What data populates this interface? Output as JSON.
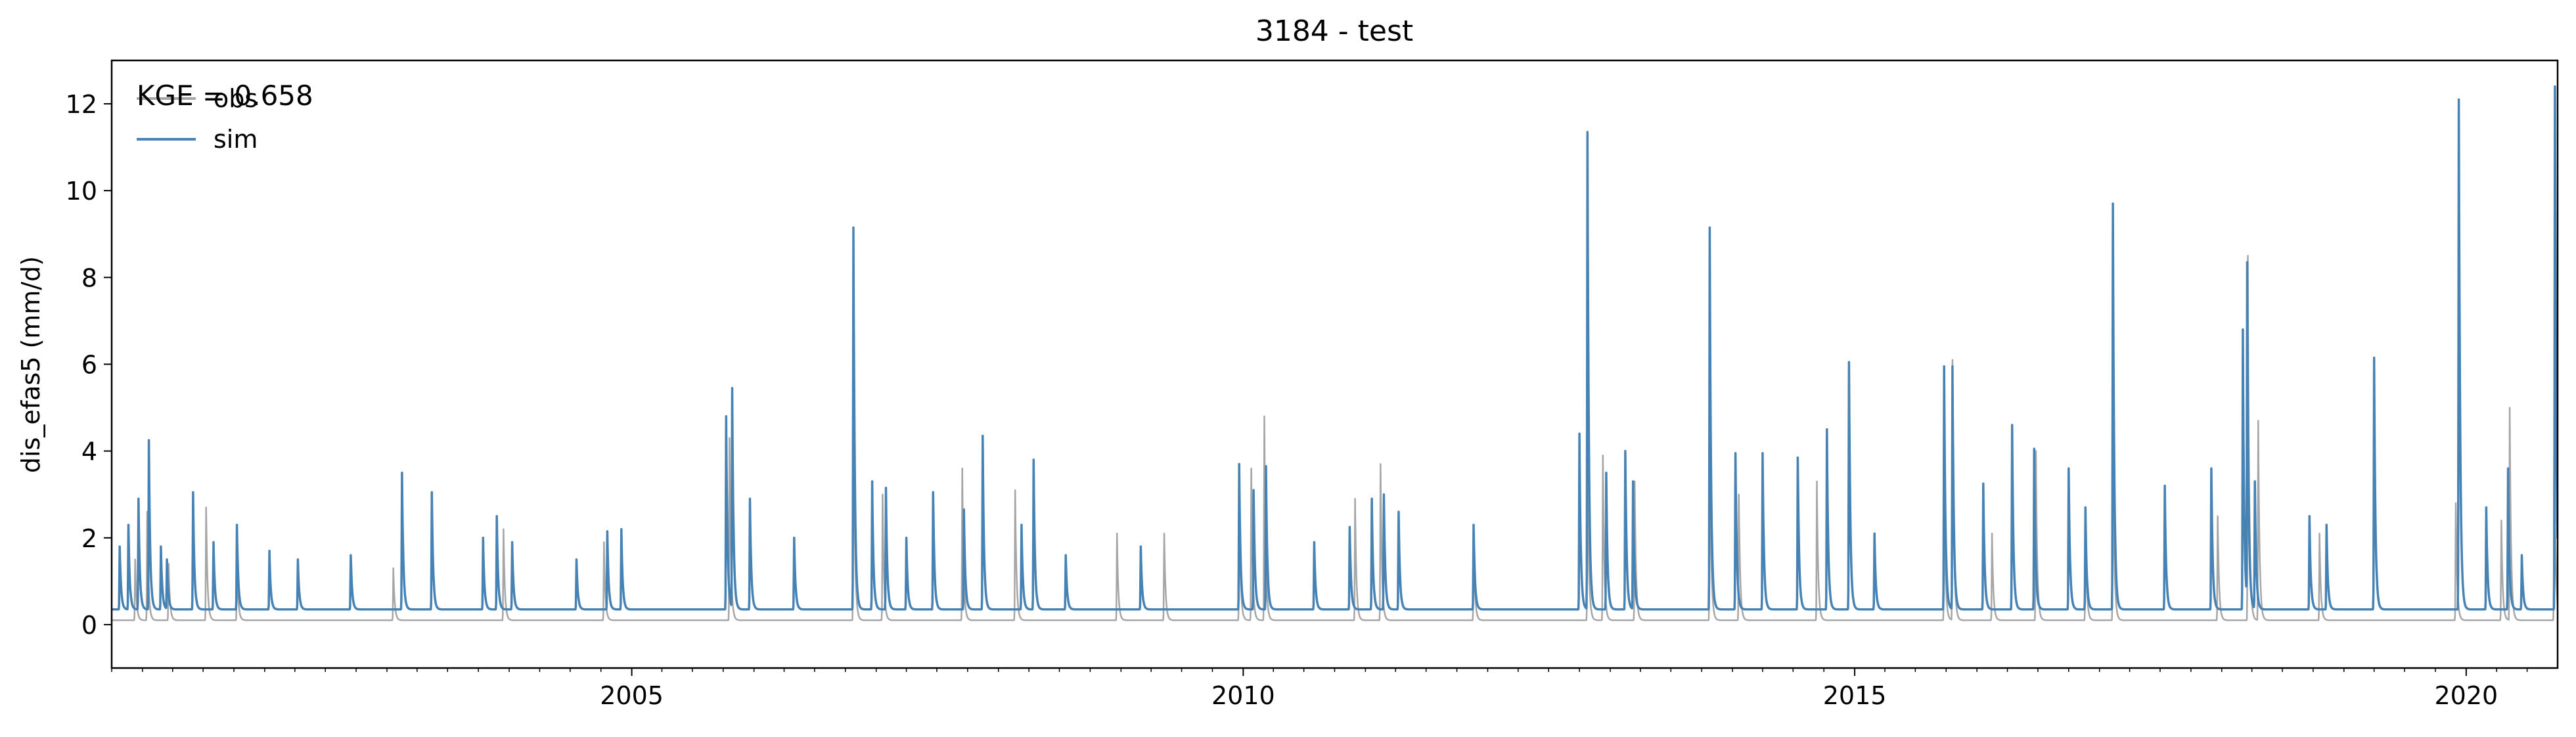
{
  "chart_data": {
    "type": "line",
    "title": "3184 - test",
    "xlabel": "",
    "ylabel": "dis_efas5 (mm/d)",
    "xlim": [
      "2000-10-01",
      "2020-09-30"
    ],
    "ylim": [
      -1,
      13
    ],
    "x_ticks": [
      "2005",
      "2010",
      "2015",
      "2020"
    ],
    "y_ticks": [
      0,
      2,
      4,
      6,
      8,
      10,
      12
    ],
    "grid": false,
    "annotation": "KGE = 0.658",
    "legend": {
      "position": "top-left",
      "entries": [
        "obs",
        "sim"
      ]
    },
    "colors": {
      "obs": "#a6a6a6",
      "sim": "#4682b4"
    },
    "series": [
      {
        "name": "obs",
        "baseline": 0.1,
        "peaks": [
          [
            "2000-12-10",
            1.5
          ],
          [
            "2001-01-15",
            2.6
          ],
          [
            "2001-03-20",
            1.4
          ],
          [
            "2001-07-10",
            2.7
          ],
          [
            "2001-10-10",
            1.5
          ],
          [
            "2003-01-20",
            1.3
          ],
          [
            "2003-12-15",
            2.2
          ],
          [
            "2004-10-10",
            1.9
          ],
          [
            "2005-10-20",
            4.3
          ],
          [
            "2006-10-25",
            5.7
          ],
          [
            "2007-01-20",
            3.0
          ],
          [
            "2007-09-15",
            3.6
          ],
          [
            "2008-02-20",
            3.1
          ],
          [
            "2008-12-20",
            2.1
          ],
          [
            "2009-05-10",
            2.1
          ],
          [
            "2009-12-20",
            3.0
          ],
          [
            "2010-01-25",
            3.6
          ],
          [
            "2010-03-05",
            4.8
          ],
          [
            "2010-12-01",
            2.9
          ],
          [
            "2011-02-15",
            3.7
          ],
          [
            "2011-11-20",
            2.0
          ],
          [
            "2012-10-25",
            4.0
          ],
          [
            "2012-12-10",
            3.9
          ],
          [
            "2013-03-15",
            3.3
          ],
          [
            "2013-10-25",
            4.9
          ],
          [
            "2014-01-20",
            3.0
          ],
          [
            "2014-09-10",
            3.3
          ],
          [
            "2015-09-25",
            3.2
          ],
          [
            "2015-10-20",
            6.1
          ],
          [
            "2016-02-15",
            2.1
          ],
          [
            "2016-06-25",
            4.0
          ],
          [
            "2016-11-20",
            2.3
          ],
          [
            "2017-02-10",
            4.6
          ],
          [
            "2017-12-20",
            2.5
          ],
          [
            "2018-03-20",
            8.5
          ],
          [
            "2018-04-20",
            4.7
          ],
          [
            "2018-10-20",
            2.1
          ],
          [
            "2019-12-01",
            2.8
          ],
          [
            "2020-04-15",
            2.4
          ],
          [
            "2020-05-10",
            5.0
          ],
          [
            "2020-09-20",
            4.5
          ]
        ]
      },
      {
        "name": "sim",
        "baseline": 0.35,
        "peaks": [
          [
            "2000-10-25",
            1.8
          ],
          [
            "2000-11-20",
            2.3
          ],
          [
            "2000-12-20",
            2.9
          ],
          [
            "2001-01-20",
            4.25
          ],
          [
            "2001-02-25",
            1.8
          ],
          [
            "2001-03-15",
            1.5
          ],
          [
            "2001-06-01",
            3.05
          ],
          [
            "2001-08-01",
            1.9
          ],
          [
            "2001-10-10",
            2.3
          ],
          [
            "2002-01-15",
            1.7
          ],
          [
            "2002-04-10",
            1.5
          ],
          [
            "2002-09-15",
            1.6
          ],
          [
            "2003-02-15",
            3.5
          ],
          [
            "2003-05-15",
            3.05
          ],
          [
            "2003-10-15",
            2.0
          ],
          [
            "2003-11-25",
            2.5
          ],
          [
            "2004-01-10",
            1.9
          ],
          [
            "2004-07-20",
            1.5
          ],
          [
            "2004-10-20",
            2.15
          ],
          [
            "2004-12-01",
            2.2
          ],
          [
            "2005-10-10",
            4.8
          ],
          [
            "2005-10-28",
            5.45
          ],
          [
            "2005-12-20",
            2.9
          ],
          [
            "2006-05-01",
            2.0
          ],
          [
            "2006-10-25",
            9.15
          ],
          [
            "2006-12-20",
            3.3
          ],
          [
            "2007-01-30",
            3.15
          ],
          [
            "2007-04-01",
            2.0
          ],
          [
            "2007-06-20",
            3.05
          ],
          [
            "2007-09-20",
            2.65
          ],
          [
            "2007-11-15",
            4.35
          ],
          [
            "2008-03-10",
            2.3
          ],
          [
            "2008-04-15",
            3.8
          ],
          [
            "2008-07-20",
            1.6
          ],
          [
            "2009-03-01",
            1.8
          ],
          [
            "2009-12-20",
            3.7
          ],
          [
            "2010-02-01",
            3.1
          ],
          [
            "2010-03-10",
            3.65
          ],
          [
            "2010-08-01",
            1.9
          ],
          [
            "2010-11-15",
            2.25
          ],
          [
            "2011-01-20",
            2.9
          ],
          [
            "2011-02-25",
            3.0
          ],
          [
            "2011-04-10",
            2.6
          ],
          [
            "2011-11-20",
            2.3
          ],
          [
            "2012-10-01",
            4.4
          ],
          [
            "2012-10-25",
            11.35
          ],
          [
            "2012-12-20",
            3.5
          ],
          [
            "2013-02-15",
            4.0
          ],
          [
            "2013-03-10",
            3.3
          ],
          [
            "2013-10-25",
            9.15
          ],
          [
            "2014-01-10",
            3.95
          ],
          [
            "2014-04-01",
            3.95
          ],
          [
            "2014-07-15",
            3.85
          ],
          [
            "2014-10-10",
            4.5
          ],
          [
            "2014-12-15",
            6.05
          ],
          [
            "2015-03-01",
            2.1
          ],
          [
            "2015-09-25",
            5.95
          ],
          [
            "2015-10-20",
            5.95
          ],
          [
            "2016-01-20",
            3.25
          ],
          [
            "2016-04-15",
            4.6
          ],
          [
            "2016-06-20",
            4.05
          ],
          [
            "2016-10-01",
            3.6
          ],
          [
            "2016-11-20",
            2.7
          ],
          [
            "2017-02-10",
            9.7
          ],
          [
            "2017-07-15",
            3.2
          ],
          [
            "2017-12-01",
            3.6
          ],
          [
            "2018-03-05",
            6.8
          ],
          [
            "2018-03-18",
            8.35
          ],
          [
            "2018-04-10",
            3.3
          ],
          [
            "2018-09-20",
            2.5
          ],
          [
            "2018-11-10",
            2.3
          ],
          [
            "2019-04-01",
            6.15
          ],
          [
            "2019-12-10",
            12.1
          ],
          [
            "2020-03-01",
            2.7
          ],
          [
            "2020-05-05",
            3.6
          ],
          [
            "2020-06-15",
            1.6
          ],
          [
            "2020-09-22",
            12.4
          ]
        ]
      }
    ]
  }
}
